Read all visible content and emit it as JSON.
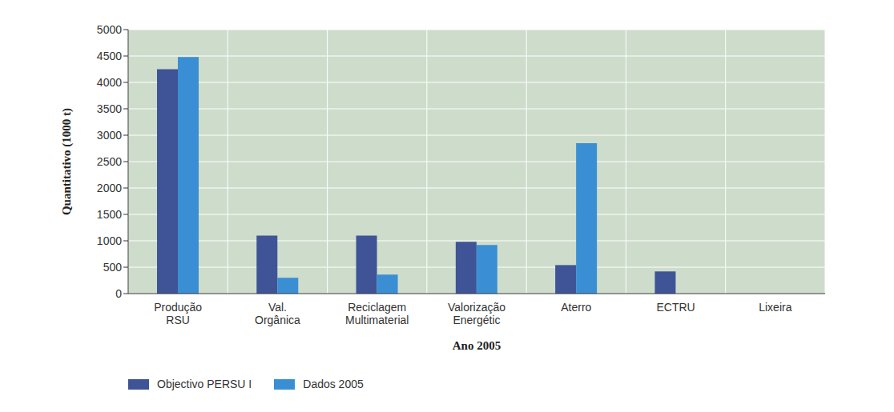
{
  "chart_data": {
    "type": "bar",
    "categories": [
      "Produção RSU",
      "Val. Orgânica",
      "Reciclagem Multimaterial",
      "Valorização Energétic",
      "Aterro",
      "ECTRU",
      "Lixeira"
    ],
    "series": [
      {
        "name": "Objectivo PERSU I",
        "color": "#3f5496",
        "values": [
          4250,
          1100,
          1100,
          980,
          540,
          420,
          0
        ]
      },
      {
        "name": "Dados 2005",
        "color": "#3a8fd4",
        "values": [
          4480,
          300,
          360,
          920,
          2850,
          0,
          0
        ]
      }
    ],
    "x_label": "Ano 2005",
    "y_label": "Quantitativo (1000 t)",
    "ylim": [
      0,
      5000
    ],
    "yticks": [
      0,
      500,
      1000,
      1500,
      2000,
      2500,
      3000,
      3500,
      4000,
      4500,
      5000
    ],
    "grid": true,
    "legend": "bottom left"
  }
}
